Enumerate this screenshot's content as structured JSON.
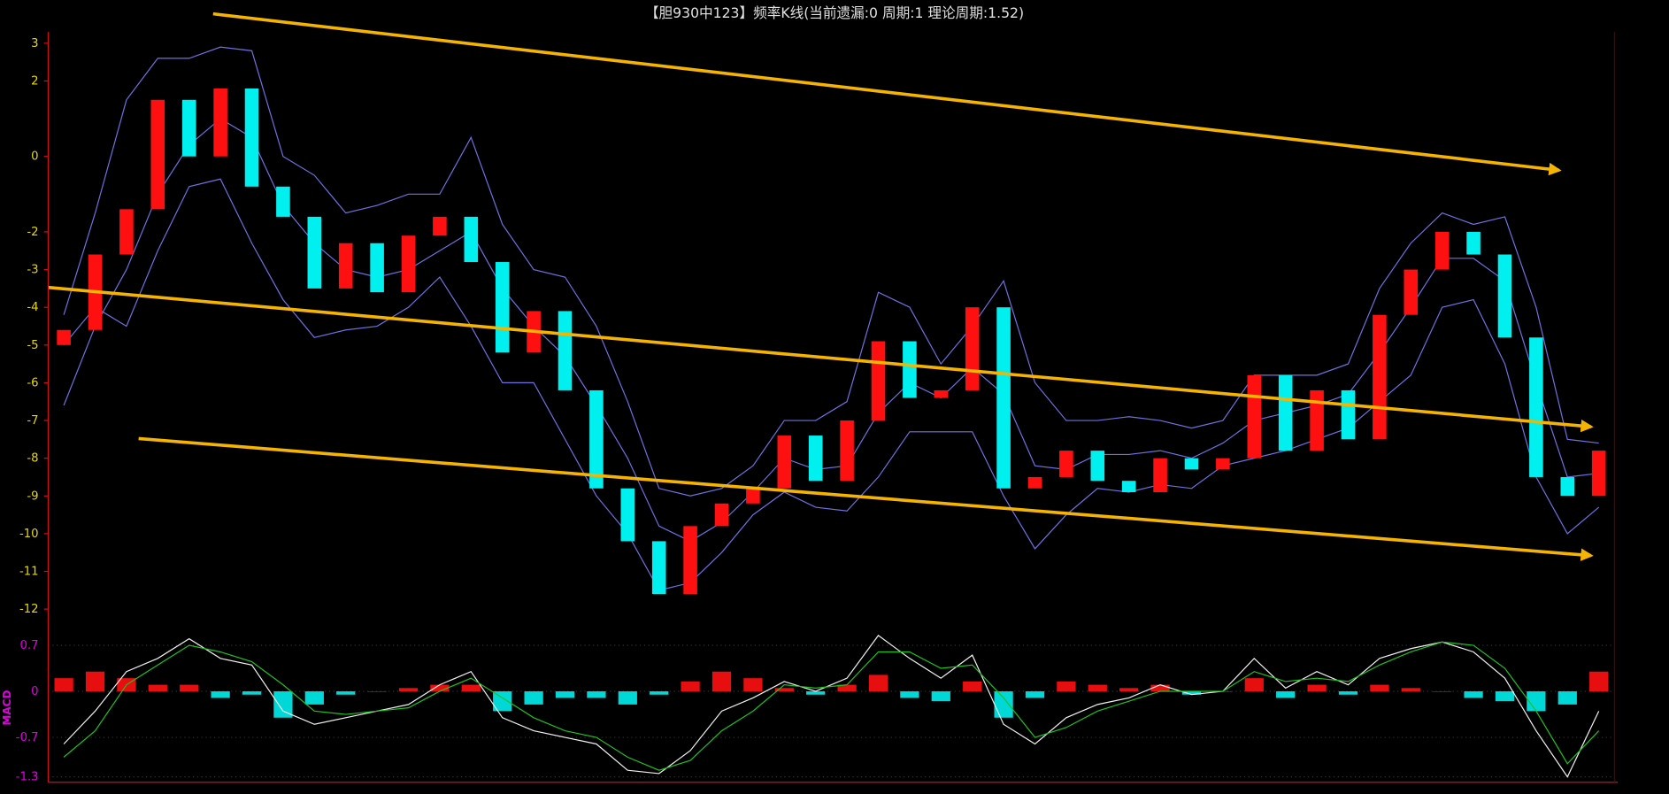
{
  "chart_data": [
    {
      "type": "candlestick",
      "title": "【胆930中123】频率K线(当前遗漏:0 周期:1 理论周期:1.52)",
      "ylim": [
        -12.5,
        3.3
      ],
      "yticks": [
        3,
        2,
        0,
        -2,
        -3,
        -4,
        -5,
        -6,
        -7,
        -8,
        -9,
        -10,
        -11,
        -12
      ],
      "up_color": "#ff1010",
      "down_color": "#00f0f0",
      "open": [
        -5.0,
        -4.6,
        -2.6,
        -1.4,
        1.5,
        0,
        1.8,
        -0.8,
        -1.6,
        -3.5,
        -2.3,
        -3.6,
        -2.1,
        -1.6,
        -2.8,
        -5.2,
        -4.1,
        -6.2,
        -8.8,
        -10.2,
        -11.6,
        -9.8,
        -9.2,
        -8.8,
        -7.4,
        -8.6,
        -7.0,
        -4.9,
        -6.4,
        -6.2,
        -4.0,
        -8.8,
        -8.5,
        -7.8,
        -8.6,
        -8.9,
        -8.0,
        -8.3,
        -8.0,
        -5.8,
        -7.8,
        -6.2,
        -7.5,
        -4.2,
        -3.0,
        -2.0,
        -2.6,
        -4.8,
        -8.5,
        -9.0
      ],
      "close": [
        -4.6,
        -2.6,
        -1.4,
        1.5,
        0,
        1.8,
        -0.8,
        -1.6,
        -3.5,
        -2.3,
        -3.6,
        -2.1,
        -1.6,
        -2.8,
        -5.2,
        -4.1,
        -6.2,
        -8.8,
        -10.2,
        -11.6,
        -9.8,
        -9.2,
        -8.8,
        -7.4,
        -8.6,
        -7.0,
        -4.9,
        -6.4,
        -6.2,
        -4.0,
        -8.8,
        -8.5,
        -7.8,
        -8.6,
        -8.9,
        -8.0,
        -8.3,
        -8.0,
        -5.8,
        -7.8,
        -6.2,
        -7.5,
        -4.2,
        -3.0,
        -2.0,
        -2.6,
        -4.8,
        -8.5,
        -9.0,
        -7.8
      ],
      "series": [
        {
          "color": "#7070e0",
          "values": [
            -4.2,
            -1.5,
            1.5,
            2.6,
            2.6,
            2.9,
            2.8,
            0,
            -0.5,
            -1.5,
            -1.3,
            -1.0,
            -1.0,
            0.5,
            -1.8,
            -3.0,
            -3.2,
            -4.5,
            -6.5,
            -8.8,
            -9.0,
            -8.8,
            -8.2,
            -7.0,
            -7.0,
            -6.5,
            -3.6,
            -4.0,
            -5.5,
            -4.5,
            -3.3,
            -6.0,
            -7.0,
            -7.0,
            -6.9,
            -7.0,
            -7.2,
            -7.0,
            -5.8,
            -5.8,
            -5.8,
            -5.5,
            -3.5,
            -2.3,
            -1.5,
            -1.8,
            -1.6,
            -4.0,
            -7.5,
            -7.6
          ]
        },
        {
          "color": "#7070e0",
          "values": [
            -6.6,
            -4.5,
            -3.0,
            -1.0,
            0.3,
            1.0,
            0.5,
            -1.3,
            -2.3,
            -3.0,
            -3.2,
            -3.0,
            -2.5,
            -2.0,
            -3.5,
            -4.5,
            -5.3,
            -6.6,
            -8.0,
            -9.8,
            -10.2,
            -9.7,
            -8.9,
            -8.0,
            -8.3,
            -8.2,
            -6.8,
            -6.0,
            -6.4,
            -5.6,
            -6.3,
            -8.2,
            -8.3,
            -7.9,
            -7.9,
            -7.8,
            -8.0,
            -7.6,
            -7.0,
            -6.8,
            -6.6,
            -6.3,
            -5.2,
            -4.0,
            -2.7,
            -2.7,
            -3.3,
            -6.0,
            -8.5,
            -8.4
          ]
        },
        {
          "color": "#7070e0",
          "values": [
            -5.0,
            -4.0,
            -4.5,
            -2.5,
            -0.8,
            -0.6,
            -2.3,
            -3.8,
            -4.8,
            -4.6,
            -4.5,
            -4.0,
            -3.2,
            -4.5,
            -6.0,
            -6.0,
            -7.5,
            -9.0,
            -10.0,
            -11.5,
            -11.3,
            -10.5,
            -9.5,
            -8.9,
            -9.3,
            -9.4,
            -8.5,
            -7.3,
            -7.3,
            -7.3,
            -9.0,
            -10.4,
            -9.5,
            -8.8,
            -8.9,
            -8.7,
            -8.8,
            -8.2,
            -8.0,
            -7.8,
            -7.5,
            -7.2,
            -6.5,
            -5.8,
            -4.0,
            -3.8,
            -5.5,
            -8.5,
            -10.0,
            -9.3
          ]
        }
      ]
    },
    {
      "type": "macd",
      "ylabel": "MACD",
      "ylim": [
        -1.35,
        0.85
      ],
      "yticks": [
        0.7,
        0,
        -0.7,
        -1.3
      ],
      "up_color": "#ff1010",
      "down_color": "#00f0f0",
      "histogram": [
        0.2,
        0.3,
        0.2,
        0.1,
        0.1,
        -0.1,
        -0.05,
        -0.4,
        -0.2,
        -0.05,
        0,
        0.05,
        0.1,
        0.1,
        -0.3,
        -0.2,
        -0.1,
        -0.1,
        -0.2,
        -0.05,
        0.15,
        0.3,
        0.2,
        0.05,
        -0.05,
        0.1,
        0.25,
        -0.1,
        -0.15,
        0.15,
        -0.4,
        -0.1,
        0.15,
        0.1,
        0.05,
        0.1,
        -0.05,
        0,
        0.2,
        -0.1,
        0.1,
        -0.05,
        0.1,
        0.05,
        0,
        -0.1,
        -0.15,
        -0.3,
        -0.2,
        0.3
      ],
      "series": [
        {
          "color": "#f0f0f0",
          "values": [
            -0.8,
            -0.3,
            0.3,
            0.5,
            0.8,
            0.5,
            0.4,
            -0.3,
            -0.5,
            -0.4,
            -0.3,
            -0.2,
            0.1,
            0.3,
            -0.4,
            -0.6,
            -0.7,
            -0.8,
            -1.2,
            -1.25,
            -0.9,
            -0.3,
            -0.1,
            0.15,
            0,
            0.2,
            0.85,
            0.5,
            0.2,
            0.55,
            -0.5,
            -0.8,
            -0.4,
            -0.2,
            -0.1,
            0.1,
            -0.05,
            0,
            0.5,
            0.05,
            0.3,
            0.1,
            0.5,
            0.65,
            0.75,
            0.6,
            0.2,
            -0.6,
            -1.3,
            -0.3
          ]
        },
        {
          "color": "#20c020",
          "values": [
            -1.0,
            -0.6,
            0.1,
            0.4,
            0.7,
            0.6,
            0.45,
            0.1,
            -0.3,
            -0.35,
            -0.3,
            -0.25,
            0,
            0.2,
            -0.1,
            -0.4,
            -0.6,
            -0.7,
            -1.0,
            -1.2,
            -1.05,
            -0.6,
            -0.3,
            0.1,
            0.05,
            0.1,
            0.6,
            0.6,
            0.35,
            0.4,
            -0.1,
            -0.7,
            -0.55,
            -0.3,
            -0.15,
            0,
            0,
            0,
            0.3,
            0.15,
            0.2,
            0.15,
            0.4,
            0.6,
            0.75,
            0.7,
            0.35,
            -0.3,
            -1.1,
            -0.6
          ]
        }
      ]
    }
  ]
}
